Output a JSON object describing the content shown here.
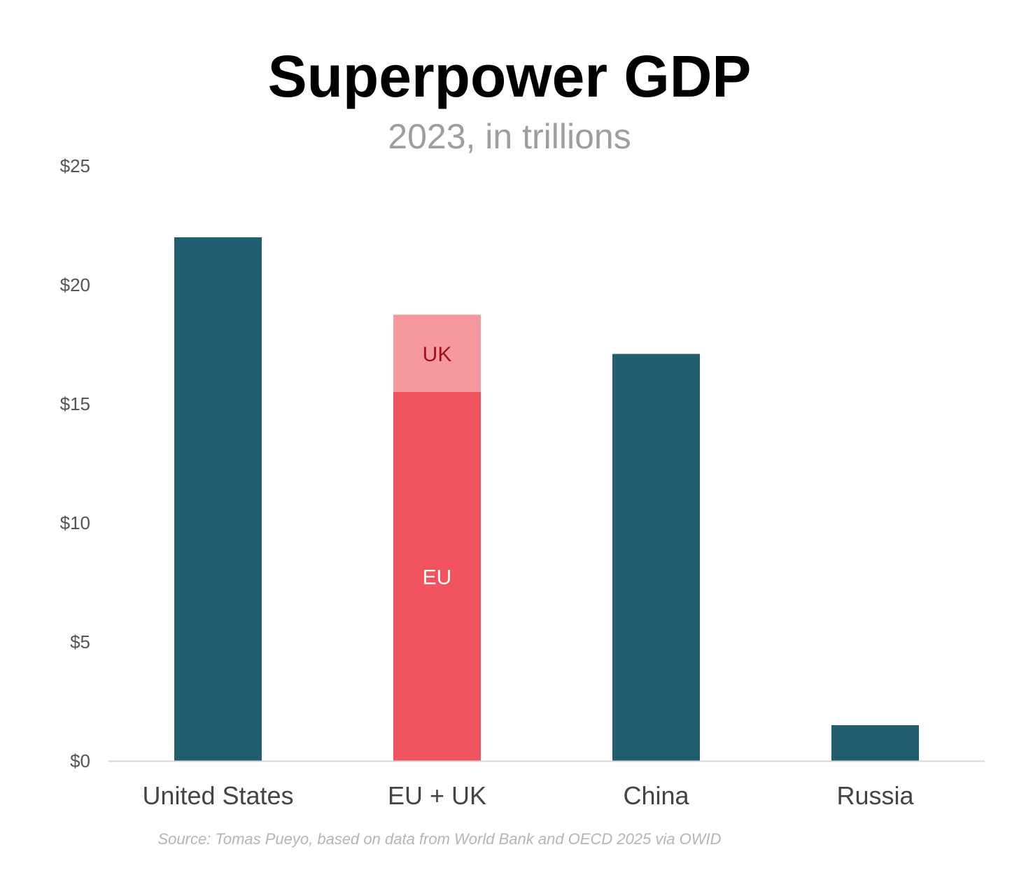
{
  "chart_data": {
    "type": "bar",
    "title": "Superpower GDP",
    "subtitle": "2023, in trillions",
    "categories": [
      "United States",
      "EU + UK",
      "China",
      "Russia"
    ],
    "ylim": [
      0,
      25
    ],
    "yticks": [
      0,
      5,
      10,
      15,
      20,
      25
    ],
    "ytick_labels": [
      "$0",
      "$5",
      "$10",
      "$15",
      "$20",
      "$25"
    ],
    "grid": false,
    "bars": [
      {
        "category": "United States",
        "segments": [
          {
            "label": "",
            "value": 22.0,
            "color": "#215F6F"
          }
        ]
      },
      {
        "category": "EU + UK",
        "segments": [
          {
            "label": "EU",
            "value": 15.5,
            "color": "#F0545E",
            "label_color": "#ffffff"
          },
          {
            "label": "UK",
            "value": 3.25,
            "color": "#F6999E",
            "label_color": "#A0111C"
          }
        ]
      },
      {
        "category": "China",
        "segments": [
          {
            "label": "",
            "value": 17.1,
            "color": "#215F6F"
          }
        ]
      },
      {
        "category": "Russia",
        "segments": [
          {
            "label": "",
            "value": 1.5,
            "color": "#215F6F"
          }
        ]
      }
    ],
    "source": "Source: Tomas Pueyo, based on data from World Bank and OECD 2025 via OWID"
  }
}
